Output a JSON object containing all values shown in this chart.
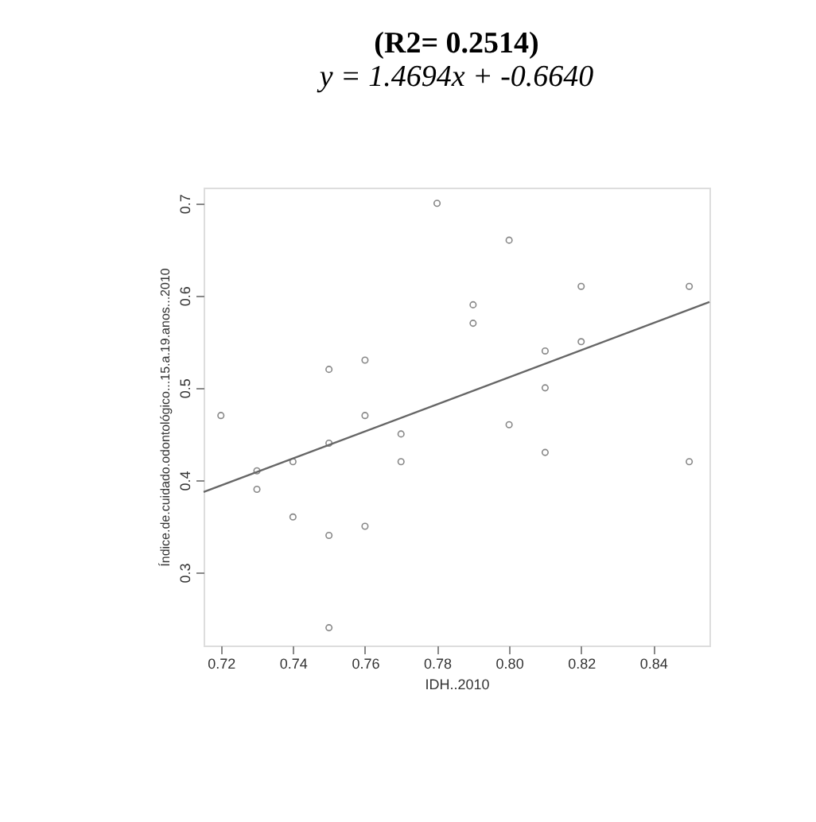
{
  "chart_data": {
    "type": "scatter",
    "title": "(R2=  0.2514)",
    "subtitle": "y = 1.4694x + -0.6640",
    "xlabel": "IDH..2010",
    "ylabel": "Índice.de.cuidado.odontológico...15.a.19.anos...2010",
    "xlim": [
      0.7152,
      0.8556
    ],
    "ylim": [
      0.2207,
      0.717
    ],
    "xticks": [
      0.72,
      0.74,
      0.76,
      0.78,
      {
        "value": 0.8,
        "label": "0.80"
      },
      0.82,
      0.84
    ],
    "yticks": [
      0.3,
      0.4,
      0.5,
      0.6,
      0.7
    ],
    "grid": false,
    "series": [
      {
        "marker": "circle",
        "color": "#555555",
        "x": [
          0.72,
          0.73,
          0.73,
          0.74,
          0.74,
          0.75,
          0.75,
          0.75,
          0.75,
          0.76,
          0.76,
          0.76,
          0.77,
          0.77,
          0.78,
          0.79,
          0.79,
          0.8,
          0.8,
          0.81,
          0.81,
          0.81,
          0.82,
          0.82,
          0.85,
          0.85
        ],
        "values": [
          0.47,
          0.41,
          0.39,
          0.42,
          0.36,
          0.52,
          0.44,
          0.34,
          0.24,
          0.53,
          0.47,
          0.35,
          0.45,
          0.42,
          0.7,
          0.59,
          0.57,
          0.66,
          0.46,
          0.54,
          0.5,
          0.43,
          0.61,
          0.55,
          0.61,
          0.42
        ]
      },
      {
        "type": "line",
        "color": "#666666",
        "x": [
          0.7152,
          0.8556
        ],
        "values": [
          0.387,
          0.593
        ]
      }
    ]
  }
}
